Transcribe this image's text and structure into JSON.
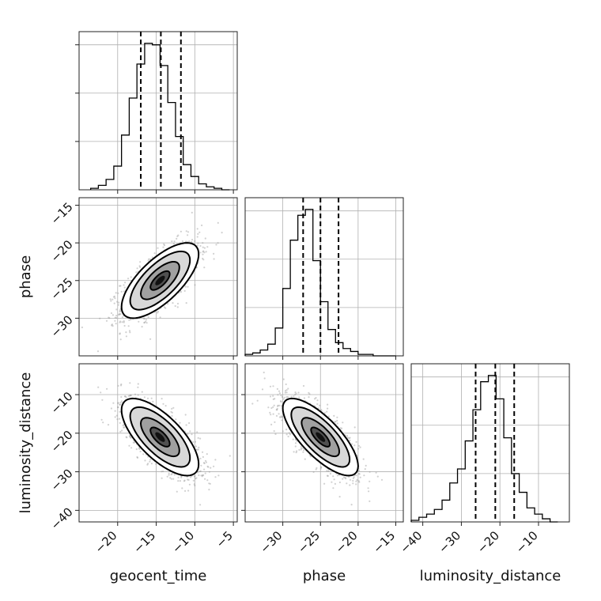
{
  "figure": {
    "parameters": [
      "geocent_time",
      "phase",
      "luminosity_distance"
    ],
    "xlabels": [
      "geocent_time",
      "phase",
      "luminosity_distance"
    ],
    "ylabels": [
      "",
      "phase",
      "luminosity_distance"
    ]
  },
  "chart_data": {
    "type": "corner",
    "grid": true,
    "parameters": [
      {
        "name": "geocent_time",
        "range": [
          -25,
          -4.5
        ],
        "ticks": [
          -20,
          -15,
          -10,
          -5
        ],
        "tick_labels": [
          "−20",
          "−15",
          "−10",
          "−5"
        ],
        "quantiles": [
          -17.0,
          -14.4,
          -11.8
        ],
        "hist_bin_edges": [
          -23.5,
          -22.5,
          -21.5,
          -20.5,
          -19.5,
          -18.5,
          -17.5,
          -16.5,
          -15.5,
          -14.5,
          -13.5,
          -12.5,
          -11.5,
          -10.5,
          -9.5,
          -8.5,
          -7.5,
          -6.5,
          -5.5
        ],
        "hist_counts": [
          0.01,
          0.03,
          0.07,
          0.16,
          0.37,
          0.62,
          0.85,
          0.99,
          0.98,
          0.84,
          0.59,
          0.36,
          0.17,
          0.09,
          0.04,
          0.02,
          0.01,
          0.0
        ],
        "mean": -14.5,
        "std": 2.5
      },
      {
        "name": "phase",
        "range": [
          -35,
          -14
        ],
        "ticks": [
          -30,
          -25,
          -20,
          -15
        ],
        "tick_labels": [
          "−30",
          "−25",
          "−20",
          "−15"
        ],
        "quantiles": [
          -27.3,
          -25.0,
          -22.6
        ],
        "hist_bin_edges": [
          -35,
          -34,
          -33,
          -32,
          -31,
          -30,
          -29,
          -28,
          -27,
          -26,
          -25,
          -24,
          -23,
          -22,
          -21,
          -20,
          -19,
          -18,
          -17,
          -16,
          -15
        ],
        "hist_counts": [
          0.01,
          0.02,
          0.04,
          0.08,
          0.19,
          0.46,
          0.79,
          0.96,
          1.0,
          0.65,
          0.37,
          0.18,
          0.09,
          0.05,
          0.03,
          0.01,
          0.01,
          0.0,
          0.0,
          0.0
        ],
        "mean": -25,
        "std": 2.5
      },
      {
        "name": "luminosity_distance",
        "range": [
          -43,
          -2
        ],
        "ticks": [
          -40,
          -30,
          -20,
          -10
        ],
        "tick_labels": [
          "−40",
          "−30",
          "−20",
          "−10"
        ],
        "quantiles": [
          -26.3,
          -21.2,
          -16.3
        ],
        "hist_bin_edges": [
          -43,
          -41,
          -39,
          -37,
          -35,
          -33,
          -31,
          -29,
          -27,
          -25,
          -23,
          -21,
          -19,
          -17,
          -15,
          -13,
          -11,
          -9,
          -7,
          -5
        ],
        "hist_counts": [
          0.01,
          0.03,
          0.05,
          0.08,
          0.14,
          0.25,
          0.34,
          0.52,
          0.72,
          0.9,
          0.94,
          0.79,
          0.54,
          0.31,
          0.19,
          0.09,
          0.05,
          0.02,
          0.0
        ],
        "mean": -21,
        "std": 5
      }
    ],
    "pairs": [
      {
        "x": "geocent_time",
        "y": "phase",
        "correlation": 0.7,
        "points": 1400
      },
      {
        "x": "geocent_time",
        "y": "luminosity_distance",
        "correlation": -0.7,
        "points": 1400
      },
      {
        "x": "phase",
        "y": "luminosity_distance",
        "correlation": -0.75,
        "points": 1400
      }
    ]
  }
}
